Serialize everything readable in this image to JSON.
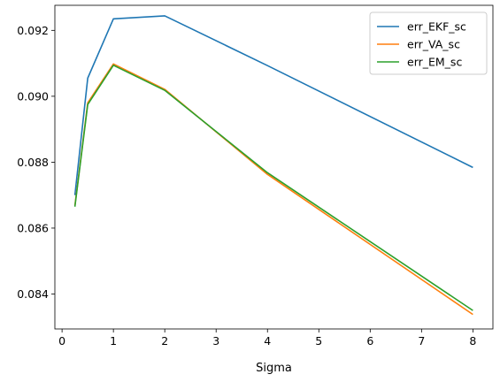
{
  "chart_data": {
    "type": "line",
    "title": "",
    "xlabel": "Sigma",
    "ylabel": "",
    "xlim": [
      -0.14,
      8.39
    ],
    "ylim": [
      0.08294,
      0.09276
    ],
    "xticks": [
      0,
      1,
      2,
      3,
      4,
      5,
      6,
      7,
      8
    ],
    "xtick_labels": [
      "0",
      "1",
      "2",
      "3",
      "4",
      "5",
      "6",
      "7",
      "8"
    ],
    "yticks": [
      0.084,
      0.086,
      0.088,
      0.09,
      0.092
    ],
    "ytick_labels": [
      "0.084",
      "0.086",
      "0.088",
      "0.090",
      "0.092"
    ],
    "grid": false,
    "legend_position": "top-right",
    "x": [
      0.25,
      0.5,
      1,
      2,
      4,
      8
    ],
    "series": [
      {
        "name": "err_EKF_sc",
        "color": "#1f77b4",
        "values": [
          0.087,
          0.09055,
          0.09235,
          0.09244,
          0.09093,
          0.08784
        ]
      },
      {
        "name": "err_VA_sc",
        "color": "#ff7f0e",
        "values": [
          0.08668,
          0.0898,
          0.09098,
          0.09021,
          0.08763,
          0.08338
        ]
      },
      {
        "name": "err_EM_sc",
        "color": "#2ca02c",
        "values": [
          0.08665,
          0.08975,
          0.09094,
          0.09018,
          0.08768,
          0.0835
        ]
      }
    ]
  }
}
